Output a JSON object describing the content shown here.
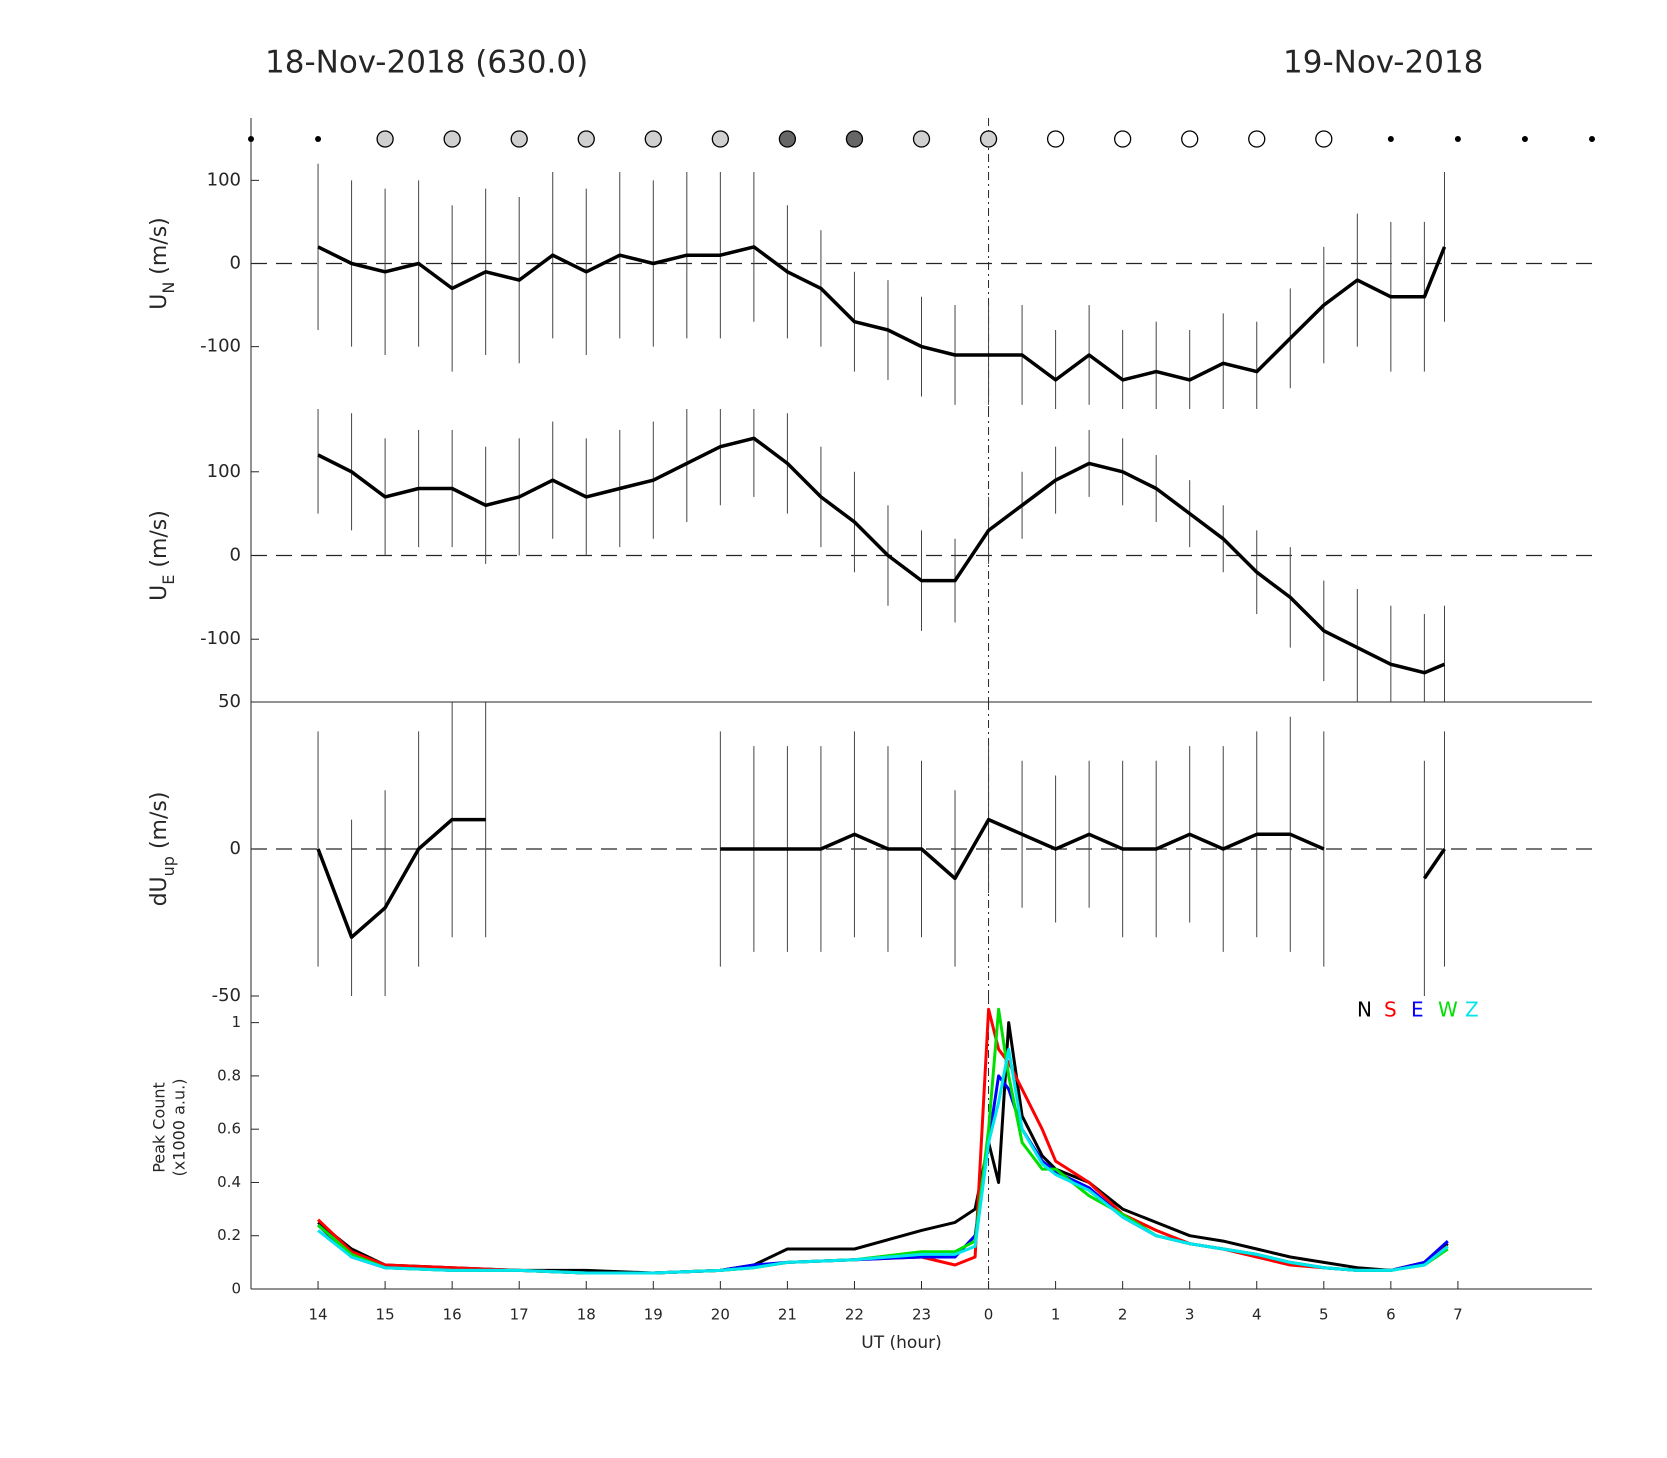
{
  "title_left": "18-Nov-2018 (630.0)",
  "title_right": "19-Nov-2018",
  "vline_x": 24,
  "chart_data": [
    {
      "type": "errorbar",
      "ylabel": [
        "U",
        "N",
        " (m/s)"
      ],
      "xlim": [
        13,
        33
      ],
      "ylim": [
        -175,
        175
      ],
      "yticks": [
        -100,
        0,
        100
      ],
      "hline": 0,
      "color": "#000000",
      "markers": {
        "x": [
          13,
          14,
          15,
          16,
          17,
          18,
          19,
          20,
          21,
          22,
          23,
          24,
          25,
          26,
          27,
          28,
          29,
          30,
          31,
          32,
          33
        ],
        "kind": [
          "dot",
          "dot",
          "circle",
          "circle",
          "circle",
          "circle",
          "circle",
          "circle",
          "circle",
          "circle",
          "circle",
          "circle",
          "circle",
          "circle",
          "circle",
          "circle",
          "circle",
          "dot",
          "dot",
          "dot",
          "dot"
        ],
        "fill": [
          "#000000",
          "#000000",
          "#d0d0d0",
          "#d0d0d0",
          "#d0d0d0",
          "#d0d0d0",
          "#d0d0d0",
          "#d0d0d0",
          "#666666",
          "#666666",
          "#d0d0d0",
          "#d0d0d0",
          "#ffffff",
          "#ffffff",
          "#ffffff",
          "#ffffff",
          "#ffffff",
          "#000000",
          "#000000",
          "#000000",
          "#000000"
        ]
      },
      "x": [
        14,
        14.5,
        15,
        15.5,
        16,
        16.5,
        17,
        17.5,
        18,
        18.5,
        19,
        19.5,
        20,
        20.5,
        21,
        21.5,
        22,
        22.5,
        23,
        23.5,
        24,
        24.5,
        25,
        25.5,
        26,
        26.5,
        27,
        27.5,
        28,
        28.5,
        29,
        29.5,
        30,
        30.5,
        30.8
      ],
      "values": [
        20,
        0,
        -10,
        0,
        -30,
        -10,
        -20,
        10,
        -10,
        10,
        0,
        10,
        10,
        20,
        -10,
        -30,
        -70,
        -80,
        -100,
        -110,
        -110,
        -110,
        -140,
        -110,
        -140,
        -130,
        -140,
        -120,
        -130,
        -90,
        -50,
        -20,
        -40,
        -40,
        20
      ],
      "errors": [
        100,
        100,
        100,
        100,
        100,
        100,
        100,
        100,
        100,
        100,
        100,
        100,
        100,
        90,
        80,
        70,
        60,
        60,
        60,
        60,
        60,
        60,
        60,
        60,
        60,
        60,
        60,
        60,
        60,
        60,
        70,
        80,
        90,
        90,
        90
      ]
    },
    {
      "type": "errorbar",
      "ylabel": [
        "U",
        "E",
        " (m/s)"
      ],
      "xlim": [
        13,
        33
      ],
      "ylim": [
        -175,
        175
      ],
      "yticks": [
        -100,
        0,
        100
      ],
      "hline": 0,
      "color": "#000000",
      "x": [
        14,
        14.5,
        15,
        15.5,
        16,
        16.5,
        17,
        17.5,
        18,
        18.5,
        19,
        19.5,
        20,
        20.5,
        21,
        21.5,
        22,
        22.5,
        23,
        23.5,
        24,
        24.5,
        25,
        25.5,
        26,
        26.5,
        27,
        27.5,
        28,
        28.5,
        29,
        29.5,
        30,
        30.5,
        30.8
      ],
      "values": [
        120,
        100,
        70,
        80,
        80,
        60,
        70,
        90,
        70,
        80,
        90,
        110,
        130,
        140,
        110,
        70,
        40,
        0,
        -30,
        -30,
        30,
        60,
        90,
        110,
        100,
        80,
        50,
        20,
        -20,
        -50,
        -90,
        -110,
        -130,
        -140,
        -130
      ],
      "errors": [
        70,
        70,
        70,
        70,
        70,
        70,
        70,
        70,
        70,
        70,
        70,
        70,
        70,
        70,
        60,
        60,
        60,
        60,
        60,
        50,
        40,
        40,
        40,
        40,
        40,
        40,
        40,
        40,
        50,
        60,
        60,
        70,
        70,
        70,
        70
      ]
    },
    {
      "type": "errorbar",
      "ylabel": [
        "dU",
        "up",
        " (m/s)"
      ],
      "xlim": [
        13,
        33
      ],
      "ylim": [
        -50,
        50
      ],
      "yticks": [
        -50,
        0,
        50
      ],
      "hline": 0,
      "color": "#000000",
      "x": [
        14,
        14.5,
        15,
        15.5,
        16,
        16.5,
        17,
        17.5,
        18,
        18.5,
        19,
        19.5,
        20,
        20.5,
        21,
        21.5,
        22,
        22.5,
        23,
        23.5,
        24,
        24.5,
        25,
        25.5,
        26,
        26.5,
        27,
        27.5,
        28,
        28.5,
        29,
        29.5,
        30,
        30.5,
        30.8
      ],
      "values": [
        0,
        -30,
        -20,
        0,
        10,
        10,
        null,
        null,
        null,
        null,
        null,
        null,
        0,
        0,
        0,
        0,
        5,
        0,
        0,
        -10,
        10,
        5,
        0,
        5,
        0,
        0,
        5,
        0,
        5,
        5,
        0,
        null,
        null,
        -10,
        0
      ],
      "errors": [
        40,
        40,
        40,
        40,
        40,
        40,
        null,
        null,
        null,
        null,
        null,
        null,
        40,
        35,
        35,
        35,
        35,
        35,
        30,
        30,
        25,
        25,
        25,
        25,
        30,
        30,
        30,
        35,
        35,
        40,
        40,
        null,
        null,
        40,
        40
      ]
    },
    {
      "type": "line",
      "ylabel": [
        "Peak Count",
        "(x1000 a.u.)"
      ],
      "xlabel": "UT (hour)",
      "xlim": [
        13,
        33
      ],
      "ylim": [
        0,
        1.1
      ],
      "yticks": [
        0,
        0.2,
        0.4,
        0.6,
        0.8,
        1
      ],
      "xticks": [
        14,
        15,
        16,
        17,
        18,
        19,
        20,
        21,
        22,
        23,
        {
          "value": 24,
          "label": "0"
        },
        {
          "value": 25,
          "label": "1"
        },
        {
          "value": 26,
          "label": "2"
        },
        {
          "value": 27,
          "label": "3"
        },
        {
          "value": 28,
          "label": "4"
        },
        {
          "value": 29,
          "label": "5"
        },
        {
          "value": 30,
          "label": "6"
        },
        {
          "value": 31,
          "label": "7"
        }
      ],
      "legend": "upper right",
      "x": [
        14,
        14.5,
        15,
        16,
        17,
        18,
        19,
        20,
        20.5,
        21,
        22,
        23,
        23.5,
        23.8,
        24,
        24.15,
        24.3,
        24.5,
        24.8,
        25,
        25.5,
        26,
        26.5,
        27,
        27.5,
        28,
        28.5,
        29,
        29.5,
        30,
        30.5,
        30.85
      ],
      "series": [
        {
          "name": "N",
          "color": "#000000",
          "values": [
            0.25,
            0.15,
            0.09,
            0.08,
            0.07,
            0.07,
            0.06,
            0.07,
            0.09,
            0.15,
            0.15,
            0.22,
            0.25,
            0.3,
            0.55,
            0.4,
            1.0,
            0.65,
            0.5,
            0.45,
            0.4,
            0.3,
            0.25,
            0.2,
            0.18,
            0.15,
            0.12,
            0.1,
            0.08,
            0.07,
            0.1,
            0.17
          ]
        },
        {
          "name": "S",
          "color": "#ff0000",
          "values": [
            0.26,
            0.14,
            0.09,
            0.08,
            0.07,
            0.06,
            0.06,
            0.07,
            0.08,
            0.1,
            0.11,
            0.12,
            0.09,
            0.12,
            1.05,
            0.9,
            0.85,
            0.75,
            0.6,
            0.48,
            0.4,
            0.28,
            0.22,
            0.17,
            0.15,
            0.12,
            0.09,
            0.08,
            0.07,
            0.07,
            0.1,
            0.16
          ]
        },
        {
          "name": "E",
          "color": "#0000ff",
          "values": [
            0.24,
            0.12,
            0.08,
            0.07,
            0.07,
            0.06,
            0.06,
            0.07,
            0.09,
            0.1,
            0.11,
            0.12,
            0.12,
            0.2,
            0.55,
            0.8,
            0.75,
            0.6,
            0.48,
            0.44,
            0.38,
            0.27,
            0.2,
            0.17,
            0.15,
            0.13,
            0.1,
            0.08,
            0.07,
            0.07,
            0.1,
            0.18
          ]
        },
        {
          "name": "W",
          "color": "#00e000",
          "values": [
            0.24,
            0.13,
            0.08,
            0.07,
            0.07,
            0.06,
            0.06,
            0.07,
            0.08,
            0.1,
            0.11,
            0.14,
            0.14,
            0.18,
            0.6,
            1.05,
            0.8,
            0.55,
            0.45,
            0.45,
            0.35,
            0.28,
            0.2,
            0.17,
            0.15,
            0.13,
            0.1,
            0.08,
            0.07,
            0.07,
            0.09,
            0.15
          ]
        },
        {
          "name": "Z",
          "color": "#00e5ee",
          "values": [
            0.22,
            0.12,
            0.08,
            0.07,
            0.07,
            0.06,
            0.06,
            0.07,
            0.08,
            0.1,
            0.11,
            0.13,
            0.13,
            0.16,
            0.55,
            0.7,
            0.9,
            0.6,
            0.47,
            0.43,
            0.37,
            0.27,
            0.2,
            0.17,
            0.15,
            0.13,
            0.1,
            0.08,
            0.07,
            0.07,
            0.09,
            0.16
          ]
        }
      ]
    }
  ]
}
